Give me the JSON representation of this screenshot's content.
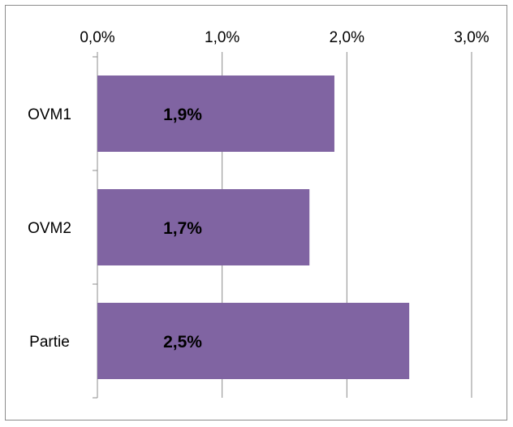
{
  "chart_data": {
    "type": "bar",
    "orientation": "horizontal",
    "categories": [
      "OVM1",
      "OVM2",
      "Partie"
    ],
    "values": [
      1.9,
      1.7,
      2.5
    ],
    "data_labels": [
      "1,9%",
      "1,7%",
      "2,5%"
    ],
    "x_ticks": [
      0,
      1,
      2,
      3
    ],
    "x_tick_labels": [
      "0,0%",
      "1,0%",
      "2,0%",
      "3,0%"
    ],
    "xlim": [
      0,
      3
    ],
    "x_axis_position": "top",
    "grid": true,
    "legend": "none",
    "title": "",
    "xlabel": "",
    "ylabel": "",
    "colors": {
      "bar": "#8064A2",
      "grid": "#8c8c8c",
      "axis": "#8c8c8c",
      "frame": "#8c8c8c"
    }
  }
}
